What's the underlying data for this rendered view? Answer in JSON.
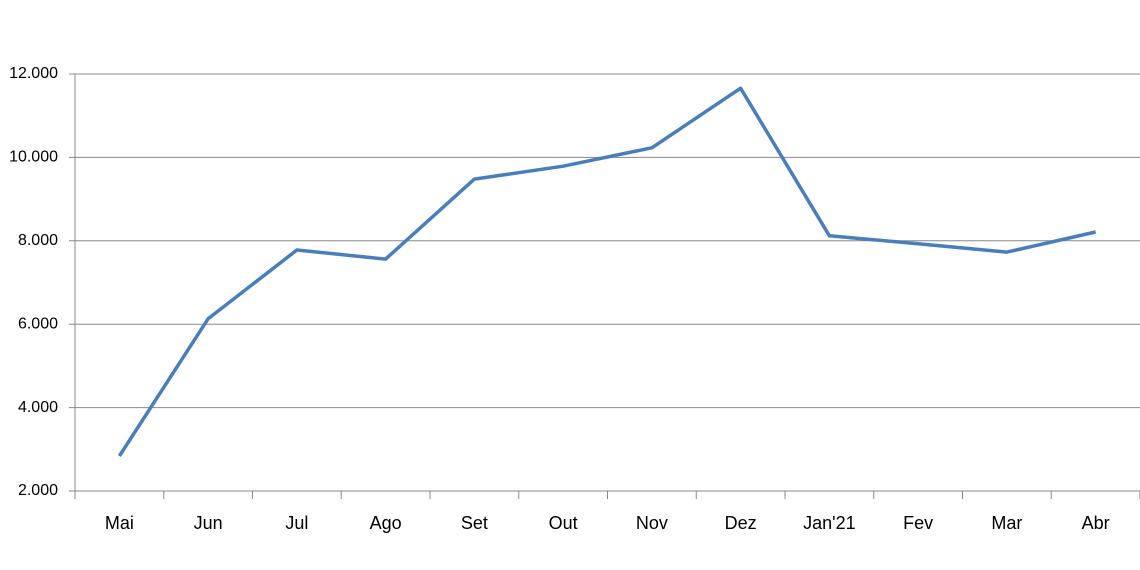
{
  "chart_data": {
    "type": "line",
    "categories": [
      "Mai",
      "Jun",
      "Jul",
      "Ago",
      "Set",
      "Out",
      "Nov",
      "Dez",
      "Jan'21",
      "Fev",
      "Mar",
      "Abr"
    ],
    "series": [
      {
        "color": "#4a7ebb",
        "values": [
          2840,
          6130,
          7780,
          7560,
          9480,
          9790,
          10230,
          11660,
          8120,
          7930,
          7730,
          8210
        ]
      }
    ],
    "ylim": [
      2000,
      12000
    ],
    "yticks": [
      {
        "value": 2000,
        "label": "2.000"
      },
      {
        "value": 4000,
        "label": "4.000"
      },
      {
        "value": 6000,
        "label": "6.000"
      },
      {
        "value": 8000,
        "label": "8.000"
      },
      {
        "value": 10000,
        "label": "10.000"
      },
      {
        "value": 12000,
        "label": "12.000"
      }
    ],
    "grid": true
  }
}
